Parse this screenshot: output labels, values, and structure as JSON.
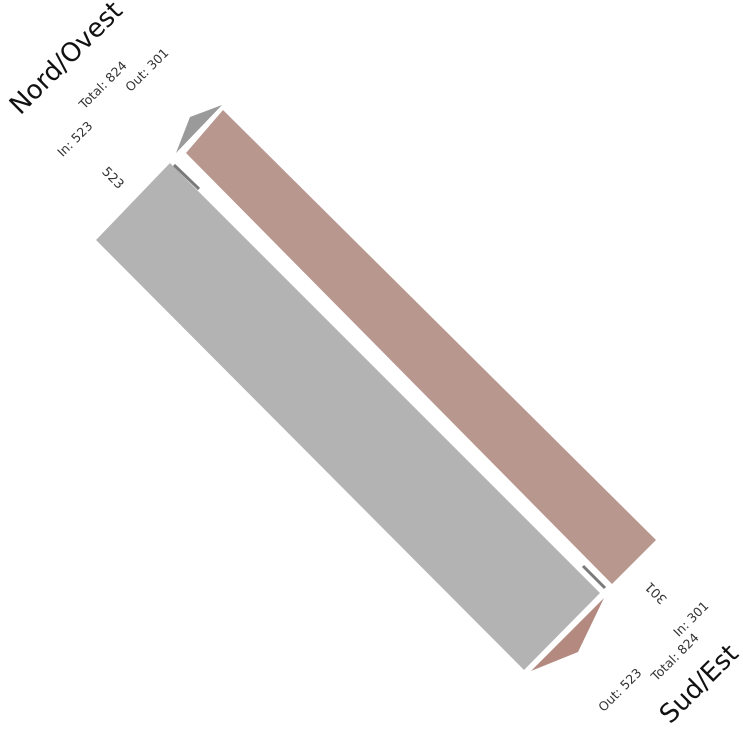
{
  "diagram": {
    "type": "flow-diagram",
    "nodes": [
      {
        "name": "Nord/Ovest",
        "in_label": "In: 523",
        "total_label": "Total: 824",
        "out_label": "Out: 301"
      },
      {
        "name": "Sud/Est",
        "in_label": "In: 301",
        "total_label": "Total: 824",
        "out_label": "Out: 523"
      }
    ],
    "flows": [
      {
        "from": "Sud/Est",
        "to": "Nord/Ovest",
        "value": 523,
        "label": "523",
        "color": "#b3b3b3"
      },
      {
        "from": "Nord/Ovest",
        "to": "Sud/Est",
        "value": 301,
        "label": "301",
        "color": "#b8978f"
      }
    ],
    "colors": {
      "flow_grey": "#b3b3b3",
      "flow_rose": "#b8978f",
      "node_edge": "#9a9a9a",
      "arrow_rose": "#b48a80",
      "background": "#ffffff"
    }
  }
}
